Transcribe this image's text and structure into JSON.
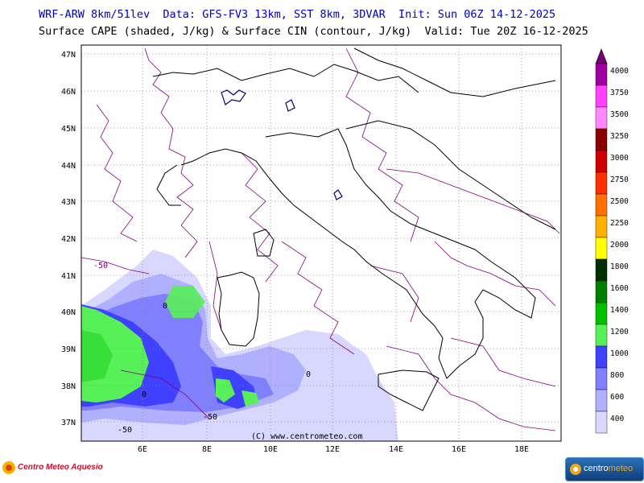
{
  "header": {
    "line1": "WRF-ARW 8km/51lev  Data: GFS-FV3 13km, SST 8km, 3DVAR  Init: Sun 06Z 14-12-2025",
    "line2": "Surface CAPE (shaded, J/kg) & Surface CIN (contour, J/kg)  Valid: Tue 20Z 16-12-2025"
  },
  "map": {
    "lat_labels": [
      "47N",
      "46N",
      "45N",
      "44N",
      "43N",
      "42N",
      "41N",
      "40N",
      "39N",
      "38N",
      "37N"
    ],
    "lon_labels": [
      "6E",
      "8E",
      "10E",
      "12E",
      "14E",
      "16E",
      "18E"
    ],
    "credit": "(C) www.centrometeo.com",
    "cin_labels": [
      "-50",
      "-50",
      "-50",
      "0",
      "0",
      "0"
    ]
  },
  "colorbar": {
    "levels": [
      "4000",
      "3750",
      "3500",
      "3250",
      "3000",
      "2750",
      "2500",
      "2250",
      "2000",
      "1800",
      "1600",
      "1400",
      "1200",
      "1000",
      "800",
      "600",
      "400"
    ],
    "colors": [
      "#a000a0",
      "#ff40ff",
      "#ff88ff",
      "#8b0000",
      "#d00000",
      "#ff3000",
      "#ff7000",
      "#ffb000",
      "#ffff00",
      "#003000",
      "#008000",
      "#00c000",
      "#58f058",
      "#4040ff",
      "#8080ff",
      "#b0b0ff",
      "#d8d8ff"
    ]
  },
  "footer": {
    "left_logo": "Centro Meteo Aquesio",
    "right_logo_a": "centro",
    "right_logo_b": "meteo"
  }
}
